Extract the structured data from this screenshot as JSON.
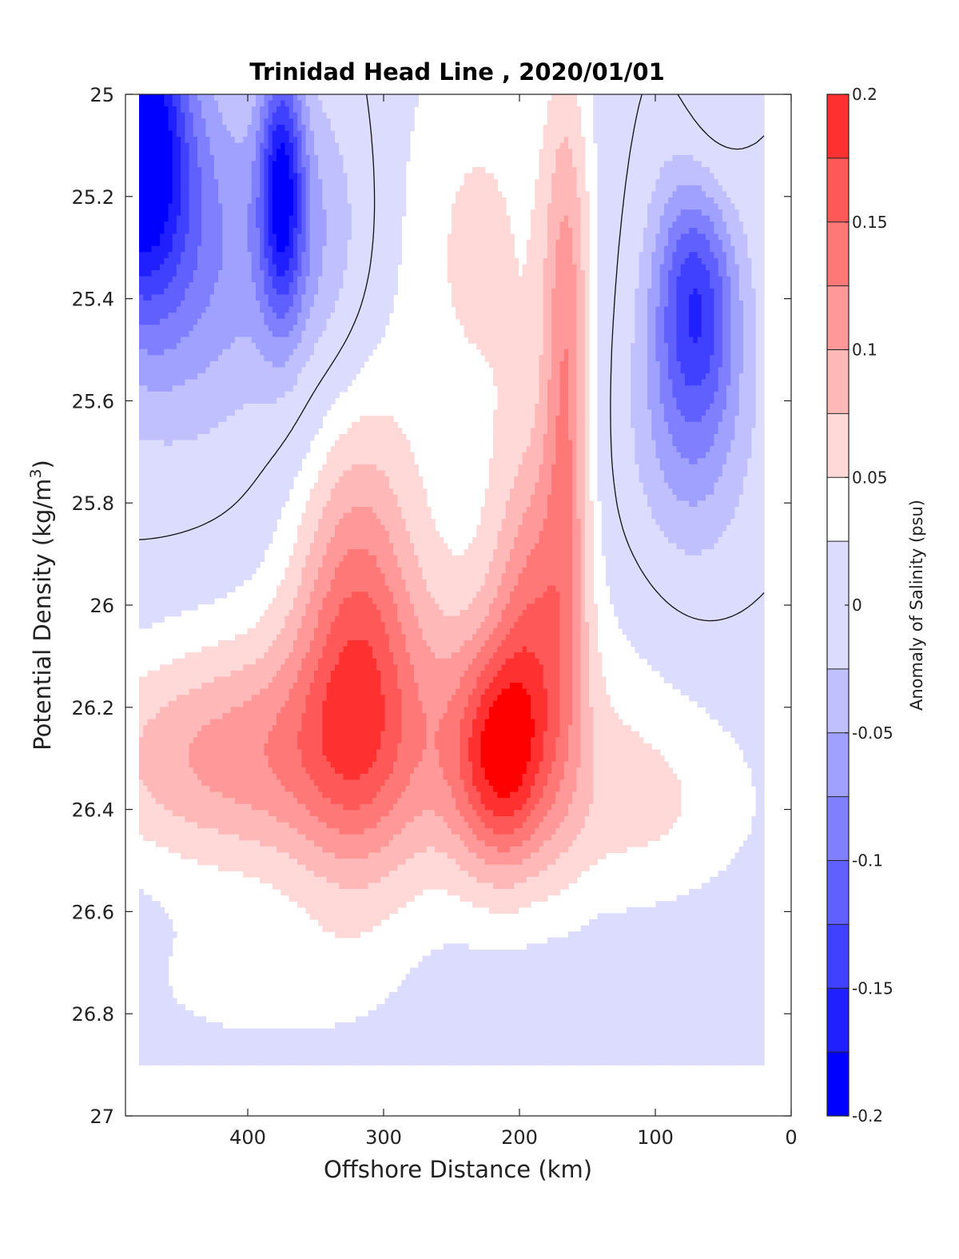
{
  "chart_data": {
    "type": "heatmap",
    "title": "Trinidad Head Line , 2020/01/01",
    "xlabel": "Offshore Distance (km)",
    "ylabel": "Potential Density (kg/m",
    "ylabel_sup": "3",
    "ylabel_end": ")",
    "xlim": [
      490,
      0
    ],
    "ylim": [
      25,
      27
    ],
    "y_reversed": true,
    "xticks": [
      400,
      300,
      200,
      100,
      0
    ],
    "yticks": [
      25,
      25.2,
      25.4,
      25.6,
      25.8,
      26,
      26.2,
      26.4,
      26.6,
      26.8,
      27
    ],
    "colorbar": {
      "label": "Anomaly of Salinity (psu)",
      "range": [
        -0.2,
        0.2
      ],
      "levels": [
        -0.2,
        -0.175,
        -0.15,
        -0.125,
        -0.1,
        -0.075,
        -0.05,
        -0.025,
        0.025,
        0.05,
        0.075,
        0.1,
        0.125,
        0.15,
        0.175,
        0.2
      ],
      "ticks": [
        0.2,
        0.15,
        0.1,
        0.05,
        0,
        -0.05,
        -0.1,
        -0.15,
        -0.2
      ],
      "tick_labels": [
        "0.2",
        "0.15",
        "0.1",
        "0.05",
        "0",
        "-0.05",
        "-0.1",
        "-0.15",
        "-0.2"
      ],
      "colors": [
        "#0000ff",
        "#2020ff",
        "#4040ff",
        "#6060ff",
        "#8080ff",
        "#a0a0ff",
        "#c0c0ff",
        "#dcdcff",
        "#ffffff",
        "#ffd8d8",
        "#ffb8b8",
        "#ff9898",
        "#ff7878",
        "#ff5858",
        "#ff3030",
        "#ff0000"
      ]
    },
    "data_range_x": [
      480,
      20
    ],
    "data_range_y": [
      25,
      26.9
    ],
    "features": [
      {
        "kind": "min",
        "name": "offshore fresh core",
        "x": 480,
        "y": 25.1,
        "value": -0.19
      },
      {
        "kind": "min",
        "name": "inner fresh core",
        "x": 375,
        "y": 25.15,
        "value": -0.15
      },
      {
        "kind": "min",
        "name": "nearshore fresh core",
        "x": 70,
        "y": 25.4,
        "value": -0.13
      },
      {
        "kind": "max",
        "name": "salty core",
        "x": 320,
        "y": 26.1,
        "value": 0.12
      },
      {
        "kind": "max",
        "name": "salty core",
        "x": 220,
        "y": 26.35,
        "value": 0.13
      },
      {
        "kind": "max",
        "name": "salty core",
        "x": 165,
        "y": 25.5,
        "value": 0.1
      }
    ]
  }
}
